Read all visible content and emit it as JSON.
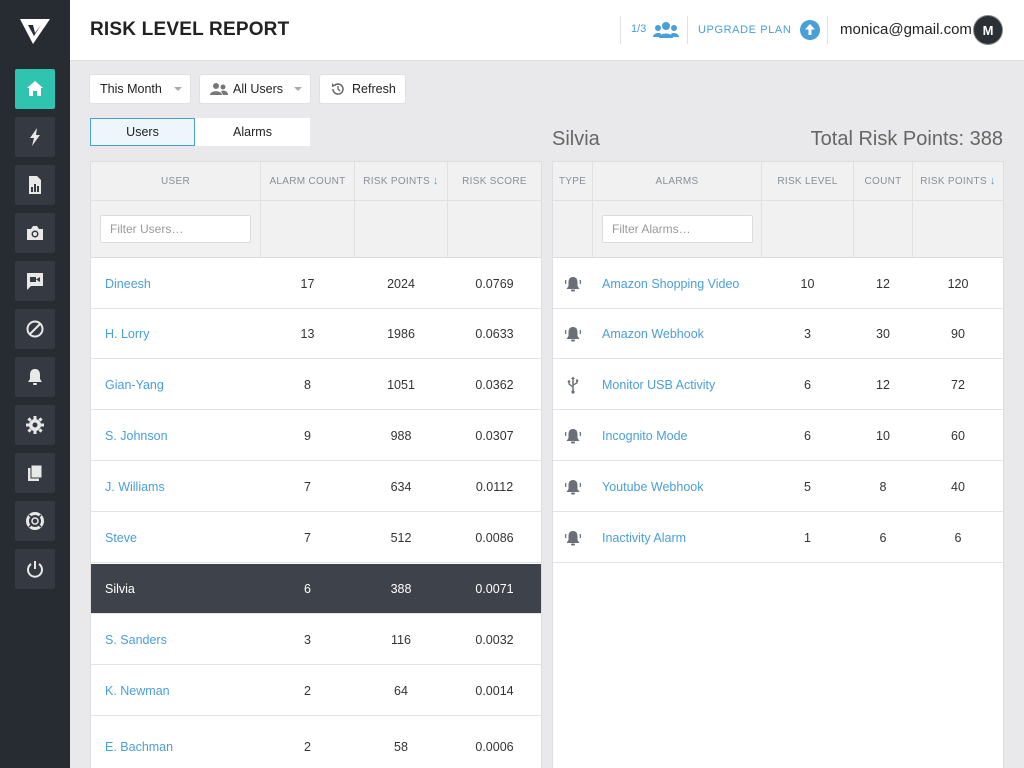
{
  "header": {
    "title": "RISK LEVEL REPORT",
    "seats": "1/3",
    "upgrade_label": "UPGRADE PLAN",
    "email": "monica@gmail.com",
    "avatar_letter": "M"
  },
  "sidebar": {
    "items": [
      {
        "name": "home",
        "icon": "home-icon",
        "active": true
      },
      {
        "name": "activity",
        "icon": "lightning-icon"
      },
      {
        "name": "reports",
        "icon": "report-icon"
      },
      {
        "name": "screenshots",
        "icon": "camera-icon"
      },
      {
        "name": "video",
        "icon": "video-chat-icon"
      },
      {
        "name": "blocked",
        "icon": "block-icon"
      },
      {
        "name": "alarms",
        "icon": "bell-icon"
      },
      {
        "name": "settings",
        "icon": "gear-icon"
      },
      {
        "name": "pages",
        "icon": "pages-icon"
      },
      {
        "name": "support",
        "icon": "lifebuoy-icon"
      },
      {
        "name": "logout",
        "icon": "power-icon"
      }
    ]
  },
  "toolbar": {
    "period": "This Month",
    "users": "All Users",
    "refresh": "Refresh"
  },
  "tabs": {
    "users": "Users",
    "alarms": "Alarms",
    "active": "users"
  },
  "users_table": {
    "columns": {
      "user": "USER",
      "alarm_count": "ALARM COUNT",
      "risk_points": "RISK POINTS",
      "risk_score": "RISK SCORE"
    },
    "filter_placeholder": "Filter Users…",
    "rows": [
      {
        "user": "Dineesh",
        "alarm_count": "17",
        "risk_points": "2024",
        "risk_score": "0.0769"
      },
      {
        "user": "H. Lorry",
        "alarm_count": "13",
        "risk_points": "1986",
        "risk_score": "0.0633"
      },
      {
        "user": "Gian-Yang",
        "alarm_count": "8",
        "risk_points": "1051",
        "risk_score": "0.0362"
      },
      {
        "user": "S.  Johnson",
        "alarm_count": "9",
        "risk_points": "988",
        "risk_score": "0.0307"
      },
      {
        "user": "J. Williams",
        "alarm_count": "7",
        "risk_points": "634",
        "risk_score": "0.0112"
      },
      {
        "user": "Steve",
        "alarm_count": "7",
        "risk_points": "512",
        "risk_score": "0.0086"
      },
      {
        "user": "Silvia",
        "alarm_count": "6",
        "risk_points": "388",
        "risk_score": "0.0071",
        "selected": true
      },
      {
        "user": "S. Sanders",
        "alarm_count": "3",
        "risk_points": "116",
        "risk_score": "0.0032"
      },
      {
        "user": "K. Newman",
        "alarm_count": "2",
        "risk_points": "64",
        "risk_score": "0.0014"
      },
      {
        "user": "E. Bachman",
        "alarm_count": "2",
        "risk_points": "58",
        "risk_score": "0.0006"
      }
    ]
  },
  "detail": {
    "user_name": "Silvia",
    "total_risk": "Total Risk Points: 388"
  },
  "alarms_table": {
    "columns": {
      "type": "TYPE",
      "alarms": "ALARMS",
      "risk_level": "RISK LEVEL",
      "count": "COUNT",
      "risk_points": "RISK POINTS"
    },
    "filter_placeholder": "Filter Alarms…",
    "rows": [
      {
        "type_icon": "bell-icon",
        "alarm": "Amazon Shopping Video",
        "risk_level": "10",
        "count": "12",
        "risk_points": "120"
      },
      {
        "type_icon": "bell-icon",
        "alarm": "Amazon Webhook",
        "risk_level": "3",
        "count": "30",
        "risk_points": "90"
      },
      {
        "type_icon": "usb-icon",
        "alarm": "Monitor USB Activity",
        "risk_level": "6",
        "count": "12",
        "risk_points": "72"
      },
      {
        "type_icon": "bell-icon",
        "alarm": "Incognito Mode",
        "risk_level": "6",
        "count": "10",
        "risk_points": "60"
      },
      {
        "type_icon": "bell-icon",
        "alarm": "Youtube Webhook",
        "risk_level": "5",
        "count": "8",
        "risk_points": "40"
      },
      {
        "type_icon": "bell-icon",
        "alarm": "Inactivity Alarm",
        "risk_level": "1",
        "count": "6",
        "risk_points": "6"
      }
    ]
  },
  "colors": {
    "sidebar_bg": "#272b32",
    "accent_teal": "#2ec4b0",
    "link_blue": "#4a9fd8",
    "selected_row": "#3e434b"
  }
}
